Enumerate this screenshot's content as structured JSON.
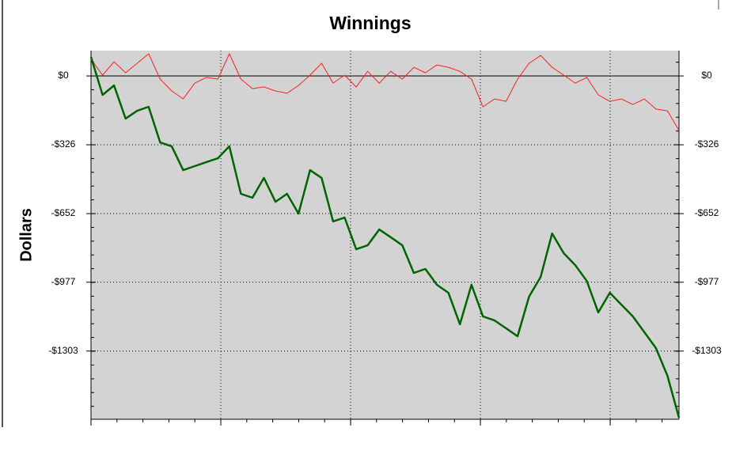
{
  "chart_data": {
    "type": "line",
    "title": "Winnings",
    "ylabel": "Dollars",
    "ylim": [
      -1626,
      120
    ],
    "yticks": [
      {
        "value": 0,
        "label": "$0"
      },
      {
        "value": -326,
        "label": "-$326"
      },
      {
        "value": -652,
        "label": "-$652"
      },
      {
        "value": -977,
        "label": "-$977"
      },
      {
        "value": -1303,
        "label": "-$1303"
      }
    ],
    "y2lim": [
      -1626,
      120
    ],
    "y2ticks": [
      {
        "value": 0,
        "label": "$0"
      },
      {
        "value": -326,
        "label": "-$326"
      },
      {
        "value": -652,
        "label": "-$652"
      },
      {
        "value": -977,
        "label": "-$977"
      },
      {
        "value": -1303,
        "label": "-$1303"
      }
    ],
    "xlim": [
      0,
      4.53
    ],
    "xticks": [
      1,
      2,
      3,
      4
    ],
    "grid": true,
    "series": [
      {
        "color": "#ff2020",
        "values": [
          79,
          4,
          67,
          15,
          60,
          105,
          -15,
          -71,
          -109,
          -34,
          -7,
          -15,
          105,
          -15,
          -60,
          -52,
          -71,
          -82,
          -45,
          4,
          60,
          -34,
          4,
          -52,
          22,
          -34,
          22,
          -15,
          41,
          15,
          52,
          41,
          22,
          -15,
          -146,
          -109,
          -120,
          -15,
          60,
          97,
          41,
          4,
          -34,
          -7,
          -90,
          -120,
          -109,
          -135,
          -109,
          -157,
          -165,
          -258
        ]
      },
      {
        "color": "#006400",
        "values": [
          90,
          -90,
          -45,
          -202,
          -165,
          -146,
          -315,
          -333,
          -446,
          -427,
          -408,
          -390,
          -333,
          -558,
          -577,
          -483,
          -596,
          -558,
          -652,
          -446,
          -483,
          -689,
          -671,
          -821,
          -802,
          -727,
          -764,
          -802,
          -933,
          -914,
          -989,
          -1027,
          -1176,
          -989,
          -1139,
          -1158,
          -1195,
          -1233,
          -1045,
          -952,
          -746,
          -839,
          -896,
          -971,
          -1120,
          -1027,
          -1083,
          -1139,
          -1214,
          -1289,
          -1420,
          -1619
        ]
      }
    ]
  }
}
